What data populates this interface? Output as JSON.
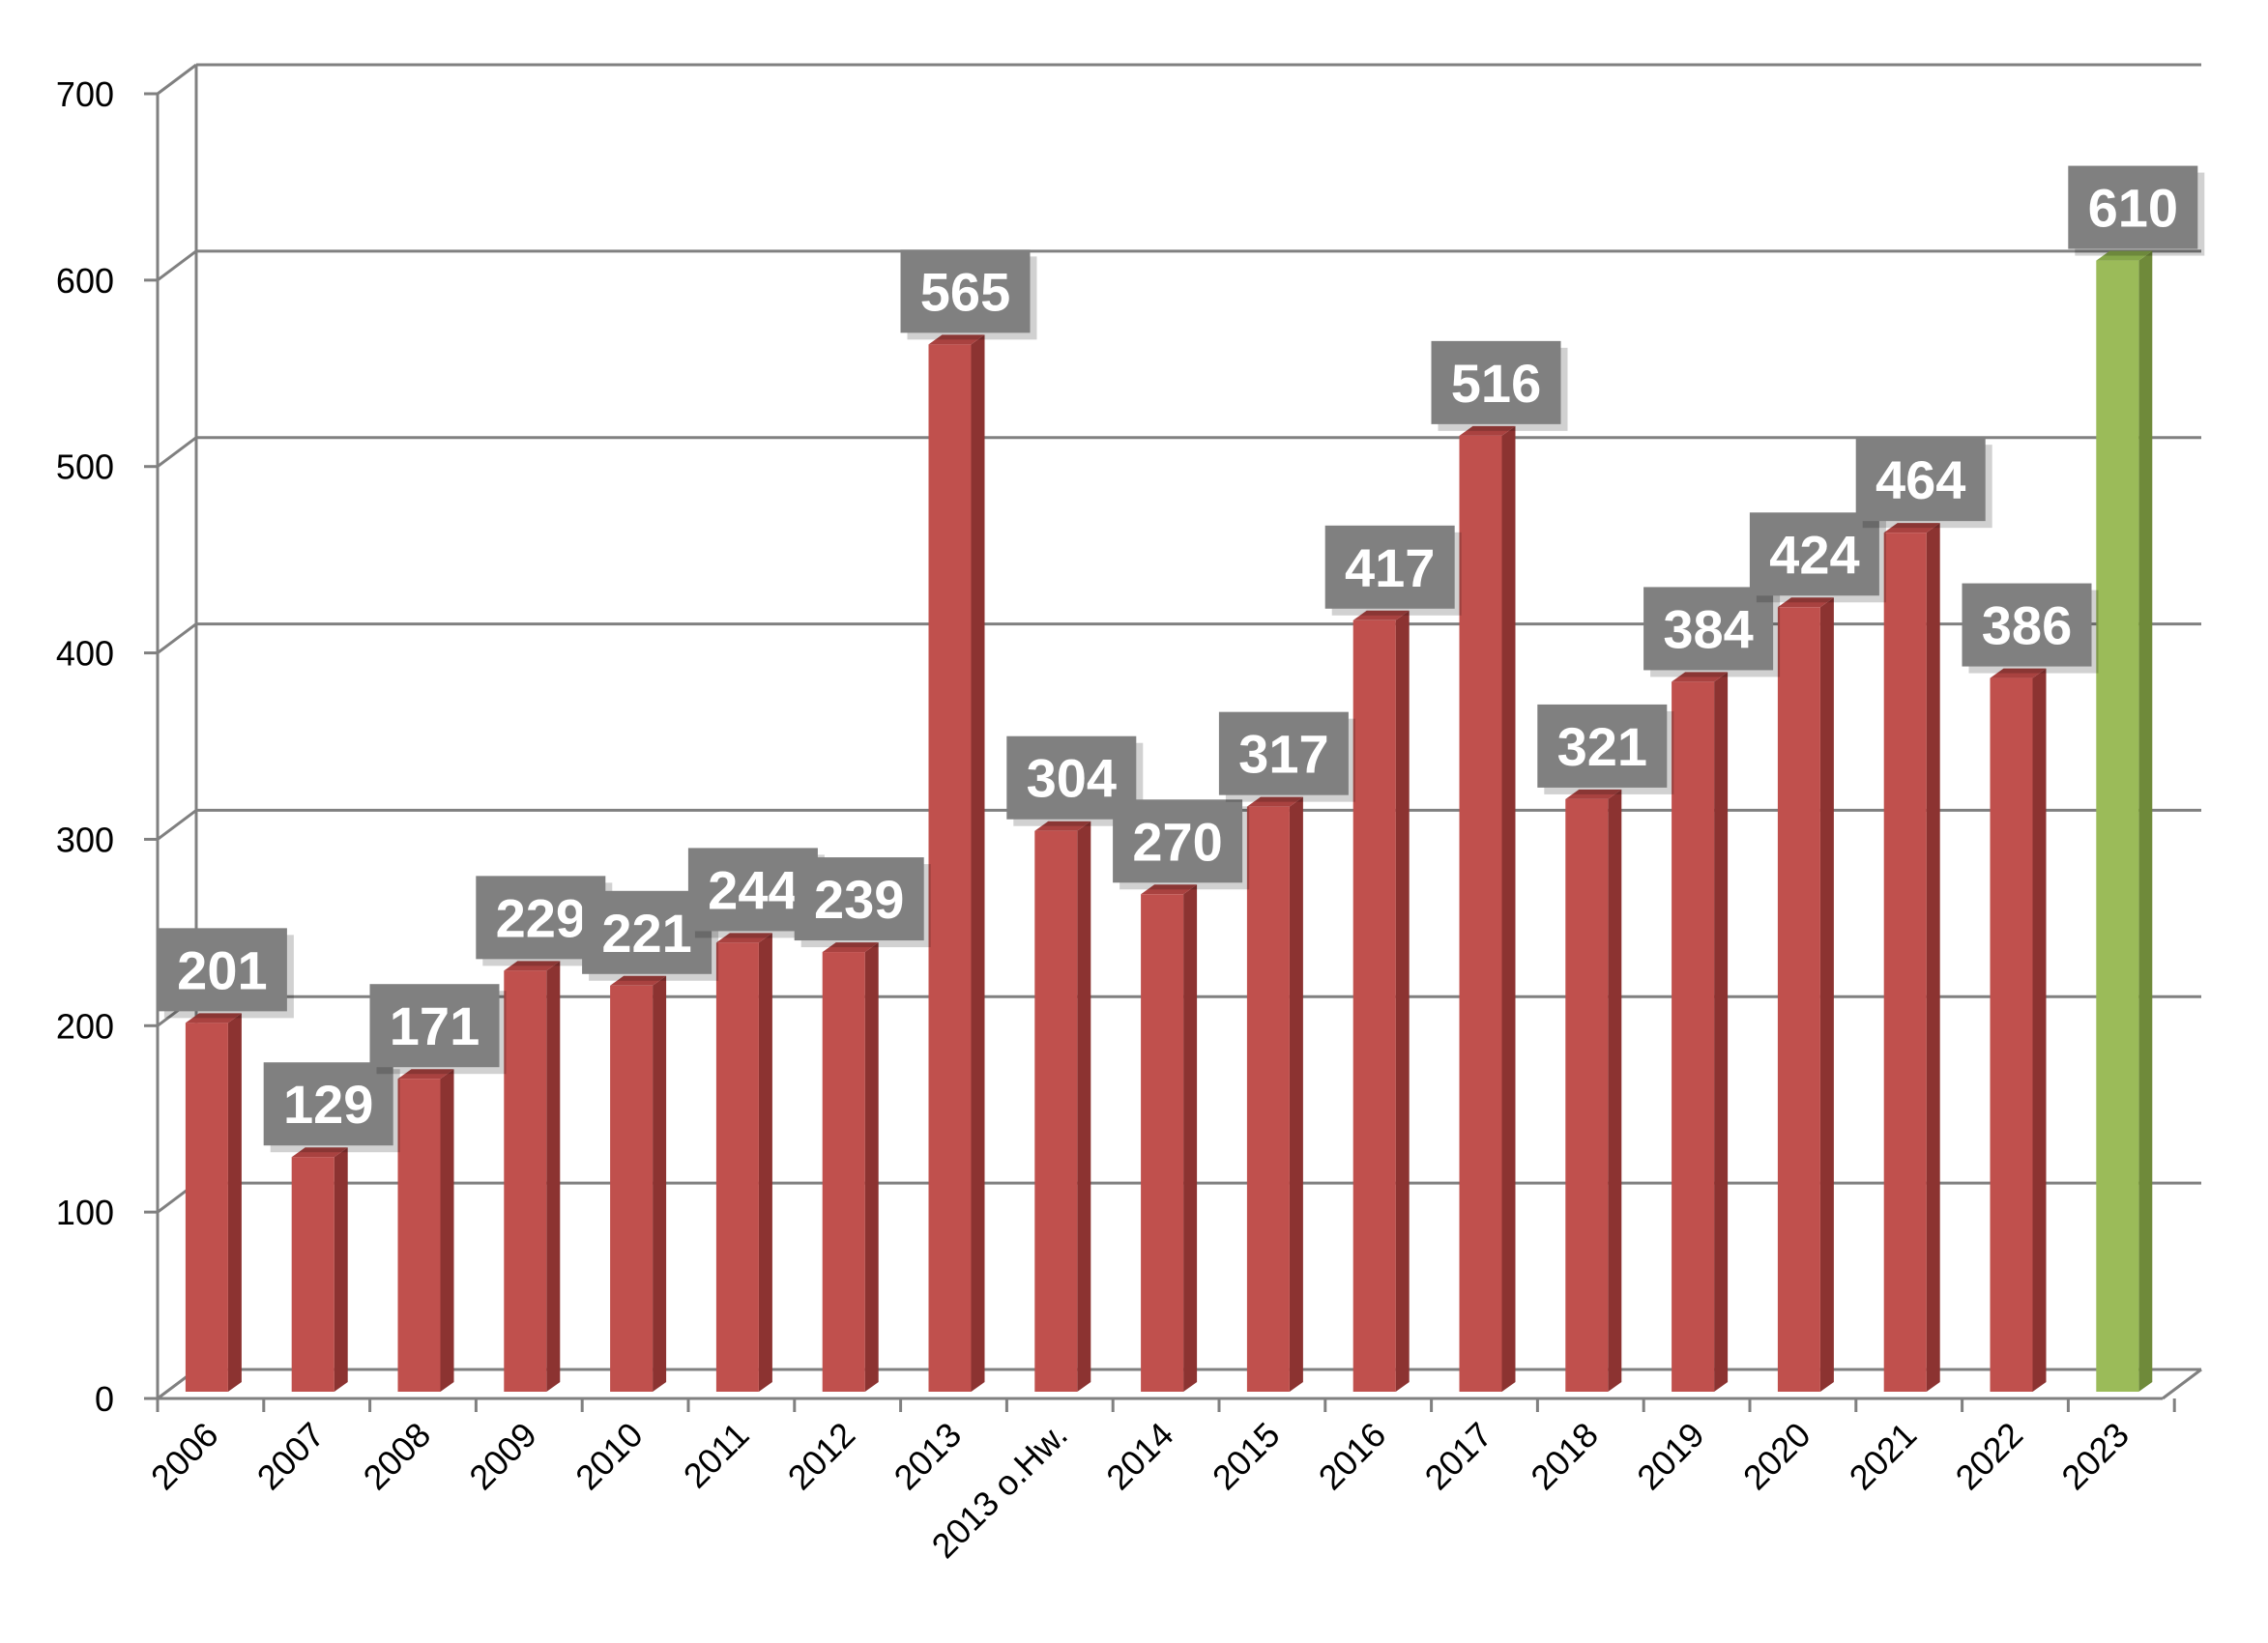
{
  "chart_data": {
    "type": "bar",
    "categories": [
      "2006",
      "2007",
      "2008",
      "2009",
      "2010",
      "2011",
      "2012",
      "2013",
      "2013 o.Hw.",
      "2014",
      "2015",
      "2016",
      "2017",
      "2018",
      "2019",
      "2020",
      "2021",
      "2022",
      "2023"
    ],
    "values": [
      201,
      129,
      171,
      229,
      221,
      244,
      239,
      565,
      304,
      270,
      317,
      417,
      516,
      321,
      384,
      424,
      464,
      386,
      610
    ],
    "data_labels": [
      "201",
      "129",
      "171",
      "229",
      "221",
      "244",
      "239",
      "565",
      "304",
      "270",
      "317",
      "417",
      "516",
      "321",
      "384",
      "424",
      "464",
      "386",
      "610"
    ],
    "ylim": [
      0,
      700
    ],
    "yticks": [
      "0",
      "100",
      "200",
      "300",
      "400",
      "500",
      "600",
      "700"
    ],
    "title": "",
    "xlabel": "",
    "ylabel": "",
    "grid": true,
    "legend": "none",
    "colors": {
      "bar": "#c0504d",
      "bar_side": "#8c3331",
      "bar_top": "#a94240",
      "highlight_bar": "#9bbb59",
      "highlight_side": "#6f8a3a",
      "highlight_top": "#86a74a",
      "label_box": "#808080",
      "grid": "#808080"
    }
  }
}
